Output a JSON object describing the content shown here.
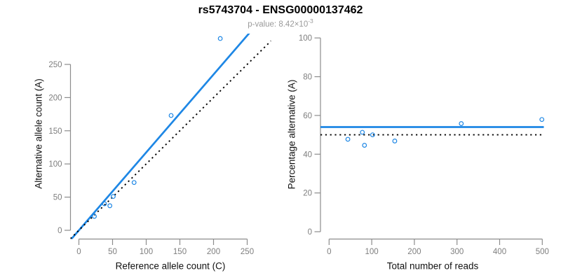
{
  "header": {
    "title": "rs5743704 - ENSG00000137462",
    "pvalue_text": "p-value: 8.42×10",
    "pvalue_exponent": "-3"
  },
  "colors": {
    "accent_blue": "#1E87E5",
    "dotted_black": "#000000",
    "axis_gray": "#8c8c8c",
    "tick_label_gray": "#7e7e7e",
    "title_black": "#000000",
    "subtitle_gray": "#9a9a9a",
    "background": "#ffffff"
  },
  "chart_data": [
    {
      "type": "scatter",
      "title": "rs5743704 - ENSG00000137462",
      "subtitle": "p-value: 8.42×10^-3",
      "xlabel": "Reference allele count (C)",
      "ylabel": "Alternative allele count (A)",
      "xticks": [
        0,
        50,
        100,
        150,
        200,
        250
      ],
      "yticks": [
        0,
        50,
        100,
        150,
        200,
        250
      ],
      "xlim": [
        -10,
        285
      ],
      "ylim": [
        -13,
        297
      ],
      "grid": false,
      "legend": "none",
      "points": [
        {
          "x": 23,
          "y": 21
        },
        {
          "x": 38,
          "y": 40
        },
        {
          "x": 46,
          "y": 37
        },
        {
          "x": 51,
          "y": 51
        },
        {
          "x": 82,
          "y": 72
        },
        {
          "x": 137,
          "y": 173
        },
        {
          "x": 210,
          "y": 289
        }
      ],
      "lines": [
        {
          "name": "fitted-ratio-line",
          "kind": "abline",
          "slope": 1.174,
          "intercept": 0,
          "style": "solid",
          "color": "#1E87E5"
        },
        {
          "name": "identity-line",
          "kind": "abline",
          "slope": 1,
          "intercept": 0,
          "style": "dotted",
          "color": "#000000"
        }
      ]
    },
    {
      "type": "scatter",
      "xlabel": "Total number of reads",
      "ylabel": "Percentage alternative (A)",
      "xticks": [
        0,
        100,
        200,
        300,
        400,
        500
      ],
      "yticks": [
        0,
        20,
        40,
        60,
        80,
        100
      ],
      "xlim": [
        -20,
        503
      ],
      "ylim": [
        -4,
        104
      ],
      "grid": false,
      "legend": "none",
      "points": [
        {
          "x": 44,
          "y": 47.7
        },
        {
          "x": 78,
          "y": 51.3
        },
        {
          "x": 83,
          "y": 44.6
        },
        {
          "x": 102,
          "y": 50.0
        },
        {
          "x": 154,
          "y": 46.8
        },
        {
          "x": 310,
          "y": 55.8
        },
        {
          "x": 499,
          "y": 57.9
        }
      ],
      "lines": [
        {
          "name": "fitted-percentage-line",
          "kind": "hline",
          "y": 54,
          "style": "solid",
          "color": "#1E87E5"
        },
        {
          "name": "null-percentage-line",
          "kind": "hline",
          "y": 50,
          "style": "dotted",
          "color": "#000000"
        }
      ]
    }
  ]
}
